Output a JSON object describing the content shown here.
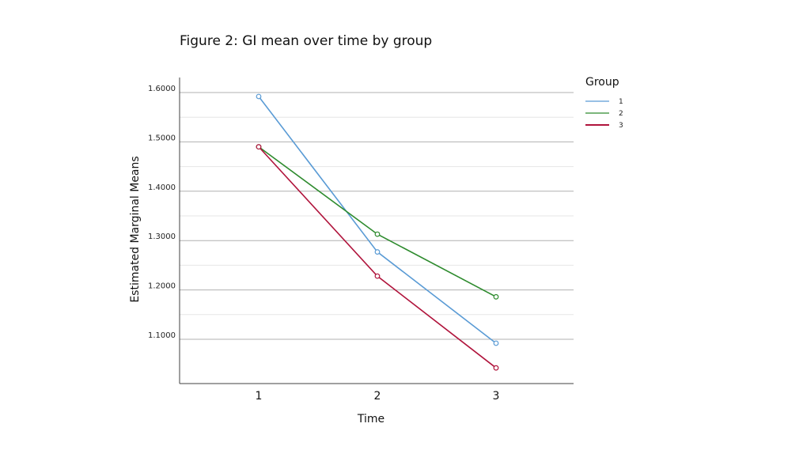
{
  "figure_title": "Figure 2: GI mean over time by group",
  "colors": {
    "group1": "#5a9bd5",
    "group2": "#2e8b2e",
    "group3": "#b0143c",
    "major_grid": "#b0b0b0",
    "minor_grid": "#e6e6e6",
    "axis": "#404040"
  },
  "chart_data": {
    "type": "line",
    "title": "",
    "xlabel": "Time",
    "ylabel": "Estimated Marginal Means",
    "categories": [
      "1",
      "2",
      "3"
    ],
    "ylim": [
      1.0,
      1.63
    ],
    "yticks": [
      1.1,
      1.2,
      1.3,
      1.4,
      1.5,
      1.6
    ],
    "ytick_labels": [
      "1.1000",
      "1.2000",
      "1.3000",
      "1.4000",
      "1.5000",
      "1.6000"
    ],
    "grid": true,
    "legend_title": "Group",
    "legend_position": "top-right",
    "series": [
      {
        "name": "1",
        "values": [
          1.592,
          1.277,
          1.092
        ]
      },
      {
        "name": "2",
        "values": [
          1.49,
          1.313,
          1.186
        ]
      },
      {
        "name": "3",
        "values": [
          1.49,
          1.228,
          1.042
        ]
      }
    ]
  }
}
